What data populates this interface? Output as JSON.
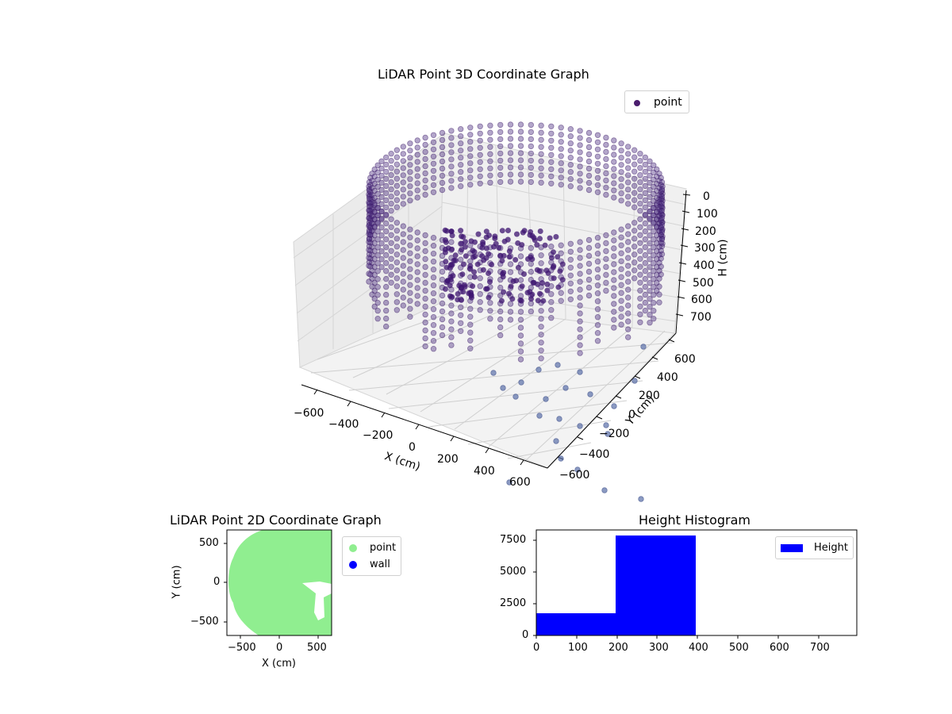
{
  "chart_data": [
    {
      "type": "scatter3d",
      "title": "LiDAR Point 3D Coordinate Graph",
      "xlabel": "X (cm)",
      "ylabel": "Y (cm)",
      "zlabel": "H (cm)",
      "x_ticks": [
        "−600",
        "−400",
        "−200",
        "0",
        "200",
        "400",
        "600"
      ],
      "y_ticks": [
        "−600",
        "−400",
        "−200",
        "0",
        "200",
        "400",
        "600"
      ],
      "z_ticks": [
        "0",
        "100",
        "200",
        "300",
        "400",
        "500",
        "600",
        "700"
      ],
      "xlim": [
        -650,
        650
      ],
      "ylim": [
        -650,
        650
      ],
      "zlim": [
        0,
        780
      ],
      "z_inverted": true,
      "legend": [
        "point"
      ],
      "legend_position": "upper right",
      "series": [
        {
          "name": "point",
          "color": "#4b1d6e",
          "shape": "ring of columns radius ~600cm, heights 0-400cm, plus inner cluster"
        }
      ]
    },
    {
      "type": "scatter",
      "title": "LiDAR Point 2D Coordinate Graph",
      "xlabel": "X (cm)",
      "ylabel": "Y (cm)",
      "x_ticks": [
        "−500",
        "0",
        "500"
      ],
      "y_ticks": [
        "500",
        "0",
        "−500"
      ],
      "xlim": [
        -670,
        670
      ],
      "ylim": [
        -670,
        670
      ],
      "legend": [
        "point",
        "wall"
      ],
      "legend_position": "outside upper right",
      "series": [
        {
          "name": "point",
          "color": "#90ee90",
          "shape": "filled disc radius ~650cm with notch at x 300-600, y -500-0"
        },
        {
          "name": "wall",
          "color": "#0000ff",
          "values": []
        }
      ]
    },
    {
      "type": "bar",
      "title": "Height Histogram",
      "xlabel": "",
      "ylabel": "",
      "bins": [
        [
          0,
          196
        ],
        [
          196,
          393
        ],
        [
          393,
          590
        ],
        [
          590,
          786
        ]
      ],
      "values": [
        1750,
        7900,
        0,
        0
      ],
      "x_ticks": [
        "0",
        "100",
        "200",
        "300",
        "400",
        "500",
        "600",
        "700"
      ],
      "y_ticks": [
        "0",
        "2500",
        "5000",
        "7500"
      ],
      "xlim": [
        0,
        790
      ],
      "ylim": [
        0,
        8300
      ],
      "legend": [
        "Height"
      ],
      "legend_position": "upper right",
      "series": [
        {
          "name": "Height",
          "color": "#0000ff"
        }
      ]
    }
  ],
  "plot3d": {
    "title": "LiDAR Point 3D Coordinate Graph",
    "legend_label": "point",
    "xlabel": "X (cm)",
    "ylabel": "Y (cm)",
    "zlabel": "H (cm)",
    "xt": [
      "−600",
      "−400",
      "−200",
      "0",
      "200",
      "400",
      "600"
    ],
    "yt": [
      "−600",
      "−400",
      "−200",
      "0",
      "200",
      "400",
      "600"
    ],
    "zt": [
      "0",
      "100",
      "200",
      "300",
      "400",
      "500",
      "600",
      "700"
    ]
  },
  "plot2d": {
    "title": "LiDAR Point 2D Coordinate Graph",
    "legend_point": "point",
    "legend_wall": "wall",
    "xlabel": "X (cm)",
    "ylabel": "Y (cm)",
    "xt": [
      "−500",
      "0",
      "500"
    ],
    "yt": [
      "500",
      "0",
      "−500"
    ]
  },
  "hist": {
    "title": "Height Histogram",
    "legend_label": "Height",
    "xt": [
      "0",
      "100",
      "200",
      "300",
      "400",
      "500",
      "600",
      "700"
    ],
    "yt": [
      "0",
      "2500",
      "5000",
      "7500"
    ]
  }
}
